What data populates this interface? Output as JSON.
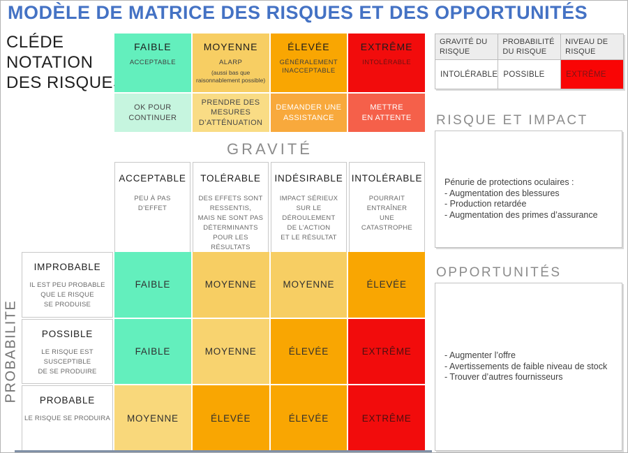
{
  "title": "MODÈLE DE MATRICE DES RISQUES ET DES OPPORTUNITÉS",
  "colors": {
    "title": "#4472C4",
    "low": "#63EFBD",
    "low_light": "#C6F5DF",
    "medium": "#F7CE63",
    "medium_light": "#F9DC85",
    "high": "#F9A602",
    "high_soft": "#F8A93C",
    "extreme": "#F20C0C",
    "extreme_soft": "#F5604A",
    "footer_bar": "#8090A6"
  },
  "key": {
    "heading": "CLÉDE\nNOTATION\nDES RISQUES",
    "levels": [
      {
        "name": "FAIBLE",
        "desc": "ACCEPTABLE",
        "note": "",
        "color": "#63EFBD",
        "action": "OK POUR\nCONTINUER",
        "action_color": "#C6F5DF"
      },
      {
        "name": "MOYENNE",
        "desc": "ALARP",
        "note": "(aussi bas que\nraisonnablement possible)",
        "color": "#F7CE63",
        "action": "PRENDRE DES\nMESURES\nD’ATTÉNUATION",
        "action_color": "#F9DC85"
      },
      {
        "name": "ÉLEVÉE",
        "desc": "GÉNÉRALEMENT\nINACCEPTABLE",
        "note": "",
        "color": "#F9A602",
        "action": "DEMANDER UNE\nASSISTANCE",
        "action_color": "#F8A93C"
      },
      {
        "name": "EXTRÊME",
        "desc": "INTOLÉRABLE",
        "note": "",
        "color": "#F20C0C",
        "action": "METTRE\nEN ATTENTE",
        "action_color": "#F5604A"
      }
    ]
  },
  "summary_table": {
    "headers": [
      "GRAVITÉ DU\nRISQUE",
      "PROBABILITÉ\nDU RISQUE",
      "NIVEAU DE\nRISQUE"
    ],
    "gravite": "INTOLÉRABLE",
    "probabilite": "POSSIBLE",
    "niveau": "EXTRÊME",
    "niveau_color": "#F90505"
  },
  "matrix": {
    "gravity_label": "GRAVITÉ",
    "probability_label": "PROBABILITE",
    "severity_columns": [
      {
        "title": "ACCEPTABLE",
        "desc": "PEU À PAS\nD’EFFET"
      },
      {
        "title": "TOLÉRABLE",
        "desc": "DES EFFETS SONT\nRESSENTIS,\nMAIS NE SONT PAS\nDÉTERMINANTS\nPOUR LES RÉSULTATS"
      },
      {
        "title": "INDÉSIRABLE",
        "desc": "IMPACT SÉRIEUX\nSUR LE\nDÉROULEMENT\nDE L’ACTION\nET LE RÉSULTAT"
      },
      {
        "title": "INTOLÉRABLE",
        "desc": "POURRAIT\nENTRAÎNER\nUNE\nCATASTROPHE"
      }
    ],
    "probability_rows": [
      {
        "title": "IMPROBABLE",
        "desc": "IL EST PEU PROBABLE\nQUE LE RISQUE\nSE PRODUISE"
      },
      {
        "title": "POSSIBLE",
        "desc": "LE RISQUE EST\nSUSCEPTIBLE\nDE SE PRODUIRE"
      },
      {
        "title": "PROBABLE",
        "desc": "LE RISQUE SE PRODUIRA"
      }
    ],
    "cells": [
      [
        {
          "label": "FAIBLE",
          "color": "#63EFBD"
        },
        {
          "label": "MOYENNE",
          "color": "#F7CE63"
        },
        {
          "label": "MOYENNE",
          "color": "#F7CE63"
        },
        {
          "label": "ÉLEVÉE",
          "color": "#F9A602"
        }
      ],
      [
        {
          "label": "FAIBLE",
          "color": "#63EFBD"
        },
        {
          "label": "MOYENNE",
          "color": "#F8D36F"
        },
        {
          "label": "ÉLEVÉE",
          "color": "#F9A602"
        },
        {
          "label": "EXTRÊME",
          "color": "#F20C0C"
        }
      ],
      [
        {
          "label": "MOYENNE",
          "color": "#F9D87B"
        },
        {
          "label": "ÉLEVÉE",
          "color": "#F9A602"
        },
        {
          "label": "ÉLEVÉE",
          "color": "#F9A602"
        },
        {
          "label": "EXTRÊME",
          "color": "#F20C0C"
        }
      ]
    ]
  },
  "risk_impact": {
    "heading": "RISQUE ET IMPACT",
    "intro": "Pénurie de protections oculaires :",
    "items": [
      "- Augmentation des blessures",
      "- Production retardée",
      "- Augmentation des primes d’assurance"
    ]
  },
  "opportunities": {
    "heading": "OPPORTUNITÉS",
    "items": [
      "- Augmenter l’offre",
      "- Avertissements de faible niveau de stock",
      "- Trouver d’autres fournisseurs"
    ]
  }
}
